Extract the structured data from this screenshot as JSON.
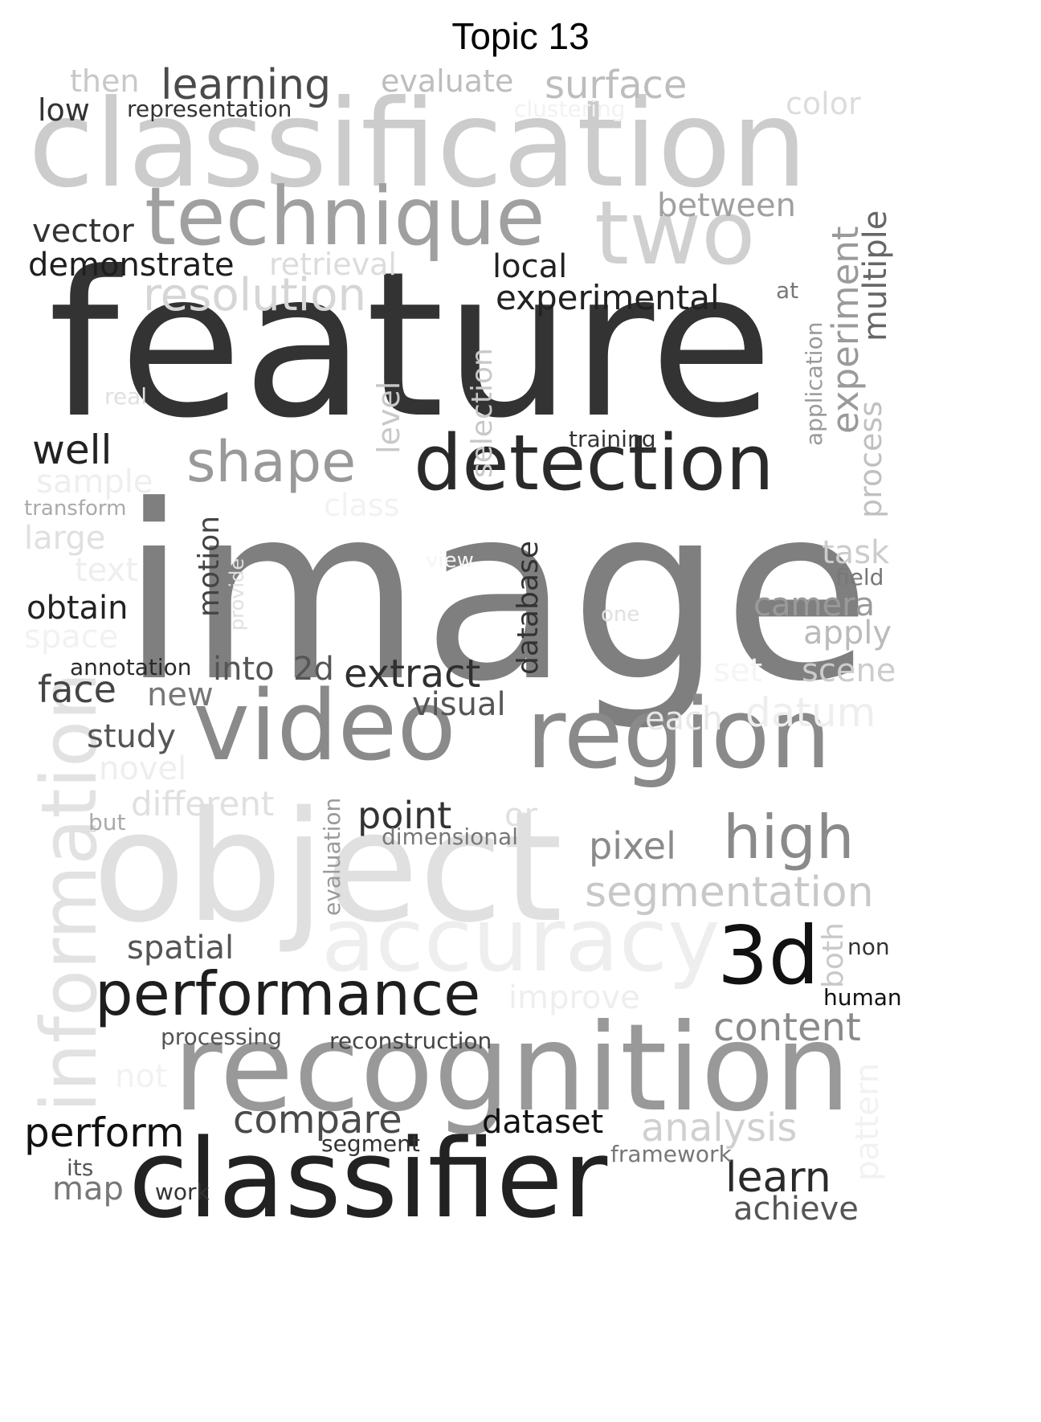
{
  "title": "Topic 13",
  "words": [
    {
      "text": "image",
      "color": "#7f7f7f"
    },
    {
      "text": "feature",
      "color": "#333333"
    },
    {
      "text": "classification",
      "color": "#cccccc"
    },
    {
      "text": "object",
      "color": "#e0e0e0"
    },
    {
      "text": "recognition",
      "color": "#999999"
    },
    {
      "text": "classifier",
      "color": "#222222"
    },
    {
      "text": "video",
      "color": "#8a8a8a"
    },
    {
      "text": "region",
      "color": "#8a8a8a"
    },
    {
      "text": "technique",
      "color": "#a0a0a0"
    },
    {
      "text": "two",
      "color": "#d0d0d0"
    },
    {
      "text": "detection",
      "color": "#2a2a2a"
    },
    {
      "text": "accuracy",
      "color": "#eeeeee"
    },
    {
      "text": "information",
      "color": "#e2e2e2"
    },
    {
      "text": "performance",
      "color": "#1e1e1e"
    },
    {
      "text": "3d",
      "color": "#111111"
    },
    {
      "text": "shape",
      "color": "#999999"
    },
    {
      "text": "high",
      "color": "#8a8a8a"
    },
    {
      "text": "learning",
      "color": "#4a4a4a"
    },
    {
      "text": "resolution",
      "color": "#d6d6d6"
    },
    {
      "text": "segmentation",
      "color": "#c8c8c8"
    },
    {
      "text": "experiment",
      "color": "#9a9a9a"
    },
    {
      "text": "surface",
      "color": "#bdbdbd"
    },
    {
      "text": "content",
      "color": "#8a8a8a"
    },
    {
      "text": "extract",
      "color": "#2f2f2f"
    },
    {
      "text": "compare",
      "color": "#4a4a4a"
    },
    {
      "text": "perform",
      "color": "#111111"
    },
    {
      "text": "learn",
      "color": "#2a2a2a"
    },
    {
      "text": "analysis",
      "color": "#d0d0d0"
    },
    {
      "text": "pixel",
      "color": "#8a8a8a"
    },
    {
      "text": "point",
      "color": "#333333"
    },
    {
      "text": "well",
      "color": "#222222"
    },
    {
      "text": "experimental",
      "color": "#222222"
    },
    {
      "text": "between",
      "color": "#a0a0a0"
    },
    {
      "text": "multiple",
      "color": "#666666"
    },
    {
      "text": "demonstrate",
      "color": "#1e1e1e"
    },
    {
      "text": "vector",
      "color": "#333333"
    },
    {
      "text": "local",
      "color": "#222222"
    },
    {
      "text": "retrieval",
      "color": "#dcdcdc"
    },
    {
      "text": "evaluate",
      "color": "#bdbdbd"
    },
    {
      "text": "then",
      "color": "#c8c8c8"
    },
    {
      "text": "low",
      "color": "#333333"
    },
    {
      "text": "representation",
      "color": "#333333"
    },
    {
      "text": "clustering",
      "color": "#f2f2f2"
    },
    {
      "text": "color",
      "color": "#dcdcdc"
    },
    {
      "text": "selection",
      "color": "#c8c8c8"
    },
    {
      "text": "level",
      "color": "#c8c8c8"
    },
    {
      "text": "process",
      "color": "#c0c0c0"
    },
    {
      "text": "application",
      "color": "#9a9a9a"
    },
    {
      "text": "at",
      "color": "#777777"
    },
    {
      "text": "training",
      "color": "#333333"
    },
    {
      "text": "real",
      "color": "#e0e0e0"
    },
    {
      "text": "sample",
      "color": "#eeeeee"
    },
    {
      "text": "transform",
      "color": "#aaaaaa"
    },
    {
      "text": "class",
      "color": "#f2f2f2"
    },
    {
      "text": "large",
      "color": "#e0e0e0"
    },
    {
      "text": "text",
      "color": "#eeeeee"
    },
    {
      "text": "motion",
      "color": "#444444"
    },
    {
      "text": "provide",
      "color": "#e0e0e0"
    },
    {
      "text": "view",
      "color": "#f5f5f5"
    },
    {
      "text": "database",
      "color": "#333333"
    },
    {
      "text": "task",
      "color": "#cccccc"
    },
    {
      "text": "field",
      "color": "#777777"
    },
    {
      "text": "camera",
      "color": "#9a9a9a"
    },
    {
      "text": "apply",
      "color": "#bbbbbb"
    },
    {
      "text": "one",
      "color": "#e0e0e0"
    },
    {
      "text": "obtain",
      "color": "#222222"
    },
    {
      "text": "space",
      "color": "#f2f2f2"
    },
    {
      "text": "annotation",
      "color": "#2a2a2a"
    },
    {
      "text": "into",
      "color": "#555555"
    },
    {
      "text": "2d",
      "color": "#555555"
    },
    {
      "text": "set",
      "color": "#f5f5f5"
    },
    {
      "text": "scene",
      "color": "#cccccc"
    },
    {
      "text": "face",
      "color": "#444444"
    },
    {
      "text": "new",
      "color": "#777777"
    },
    {
      "text": "visual",
      "color": "#555555"
    },
    {
      "text": "each",
      "color": "#e8e8e8"
    },
    {
      "text": "datum",
      "color": "#eeeeee"
    },
    {
      "text": "study",
      "color": "#555555"
    },
    {
      "text": "novel",
      "color": "#eeeeee"
    },
    {
      "text": "different",
      "color": "#e0e0e0"
    },
    {
      "text": "but",
      "color": "#aaaaaa"
    },
    {
      "text": "evaluation",
      "color": "#9a9a9a"
    },
    {
      "text": "or",
      "color": "#e0e0e0"
    },
    {
      "text": "dimensional",
      "color": "#777777"
    },
    {
      "text": "both",
      "color": "#c8c8c8"
    },
    {
      "text": "non",
      "color": "#333333"
    },
    {
      "text": "spatial",
      "color": "#555555"
    },
    {
      "text": "improve",
      "color": "#eeeeee"
    },
    {
      "text": "human",
      "color": "#111111"
    },
    {
      "text": "processing",
      "color": "#555555"
    },
    {
      "text": "reconstruction",
      "color": "#444444"
    },
    {
      "text": "not",
      "color": "#f2f2f2"
    },
    {
      "text": "pattern",
      "color": "#f2f2f2"
    },
    {
      "text": "dataset",
      "color": "#111111"
    },
    {
      "text": "segment",
      "color": "#333333"
    },
    {
      "text": "framework",
      "color": "#777777"
    },
    {
      "text": "its",
      "color": "#555555"
    },
    {
      "text": "map",
      "color": "#777777"
    },
    {
      "text": "work",
      "color": "#333333"
    },
    {
      "text": "achieve",
      "color": "#555555"
    }
  ]
}
